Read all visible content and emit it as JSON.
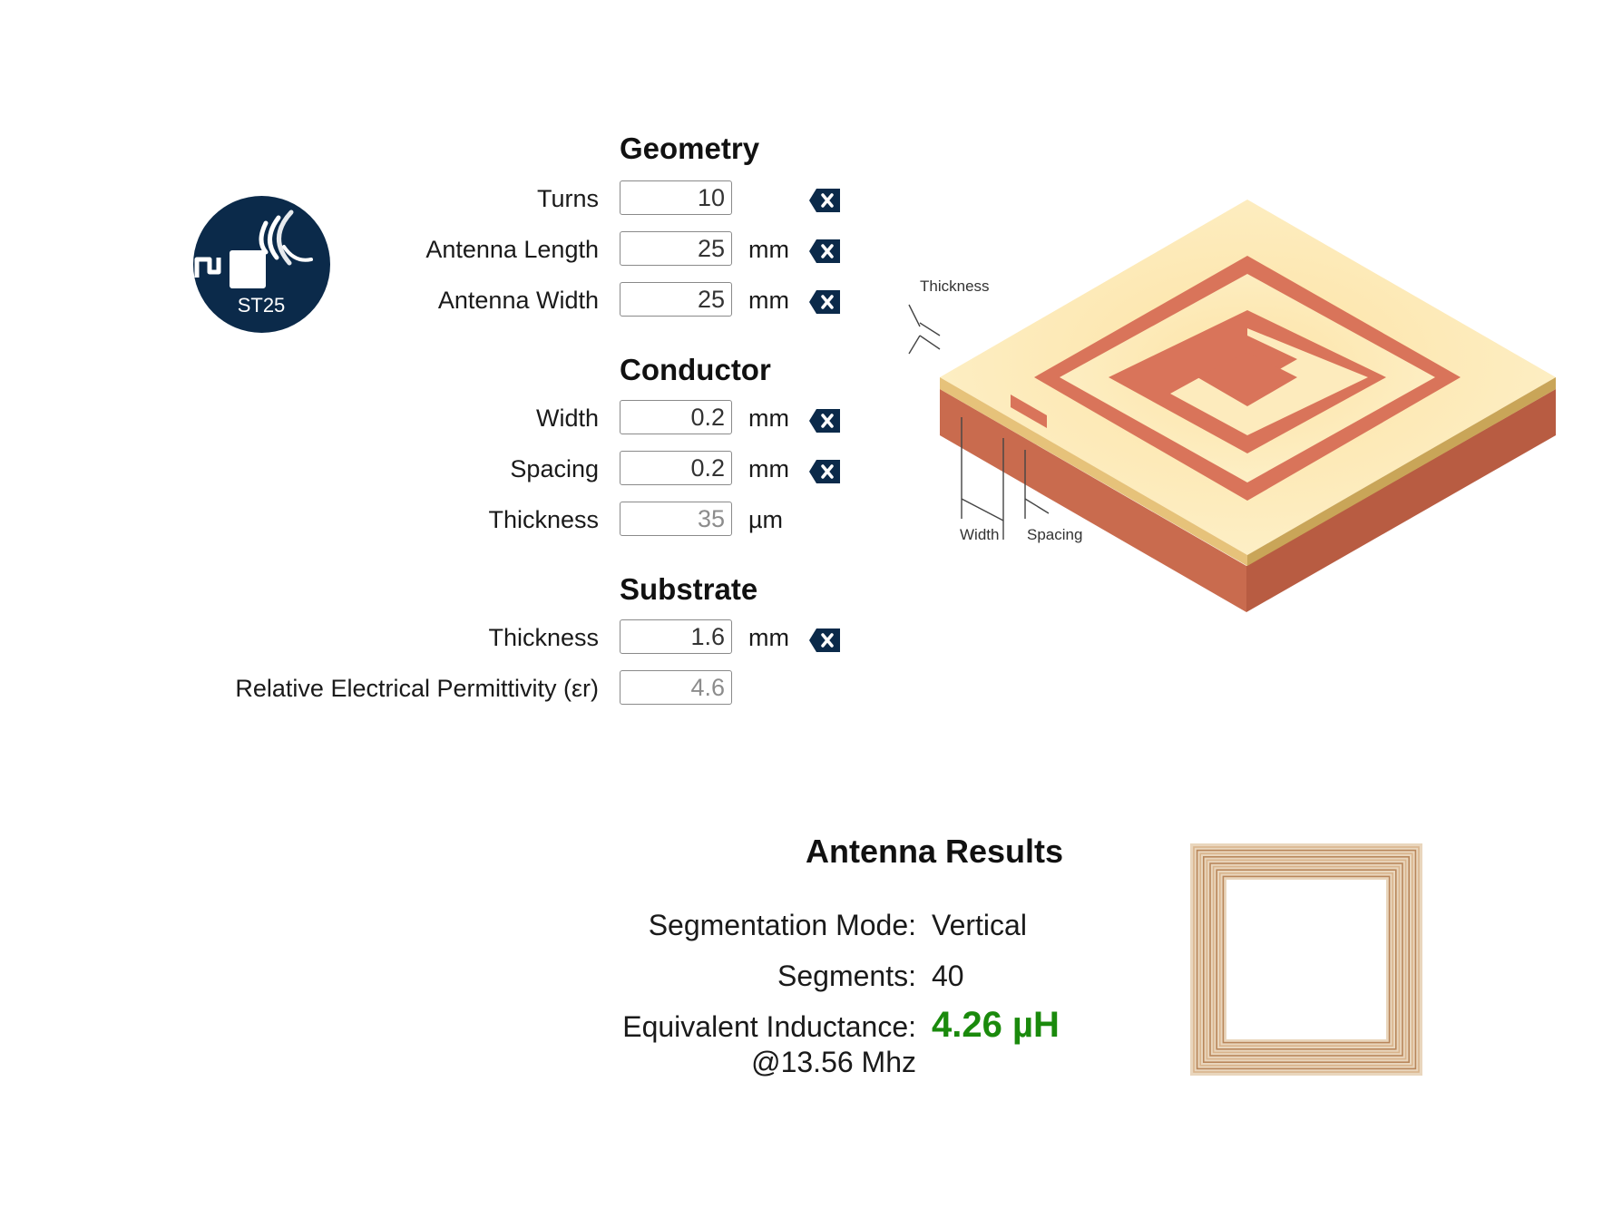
{
  "logo": {
    "text": "ST25",
    "colors": {
      "bg": "#0b2a4a",
      "fg": "#ffffff"
    }
  },
  "geometry": {
    "title": "Geometry",
    "fields": [
      {
        "label": "Turns",
        "value": "10",
        "unit": "",
        "clearable": true
      },
      {
        "label": "Antenna Length",
        "value": "25",
        "unit": "mm",
        "clearable": true
      },
      {
        "label": "Antenna Width",
        "value": "25",
        "unit": "mm",
        "clearable": true
      }
    ]
  },
  "conductor": {
    "title": "Conductor",
    "fields": [
      {
        "label": "Width",
        "value": "0.2",
        "unit": "mm",
        "clearable": true
      },
      {
        "label": "Spacing",
        "value": "0.2",
        "unit": "mm",
        "clearable": true
      },
      {
        "label": "Thickness",
        "value": "35",
        "unit": "µm",
        "clearable": false,
        "readonly": true
      }
    ]
  },
  "substrate": {
    "title": "Substrate",
    "fields": [
      {
        "label": "Thickness",
        "value": "1.6",
        "unit": "mm",
        "clearable": true
      },
      {
        "label": "Relative Electrical Permittivity (εr)",
        "value": "4.6",
        "unit": "",
        "clearable": false,
        "readonly": true
      }
    ]
  },
  "diagram": {
    "labels": {
      "thickness": "Thickness",
      "width": "Width",
      "spacing": "Spacing"
    },
    "colors": {
      "copper_top": "#fde9b4",
      "copper_side": "#c8a85a",
      "substrate_side": "#c96b4e",
      "substrate_top": "#d9745a"
    }
  },
  "results": {
    "title": "Antenna Results",
    "segmentation_mode": {
      "label": "Segmentation Mode:",
      "value": "Vertical"
    },
    "segments": {
      "label": "Segments:",
      "value": "40"
    },
    "inductance": {
      "label": "Equivalent Inductance:",
      "sublabel": "@13.56 Mhz",
      "value": "4.26 µH",
      "color": "#1a8a0c"
    }
  },
  "icons": {
    "clear": "clear-icon"
  }
}
